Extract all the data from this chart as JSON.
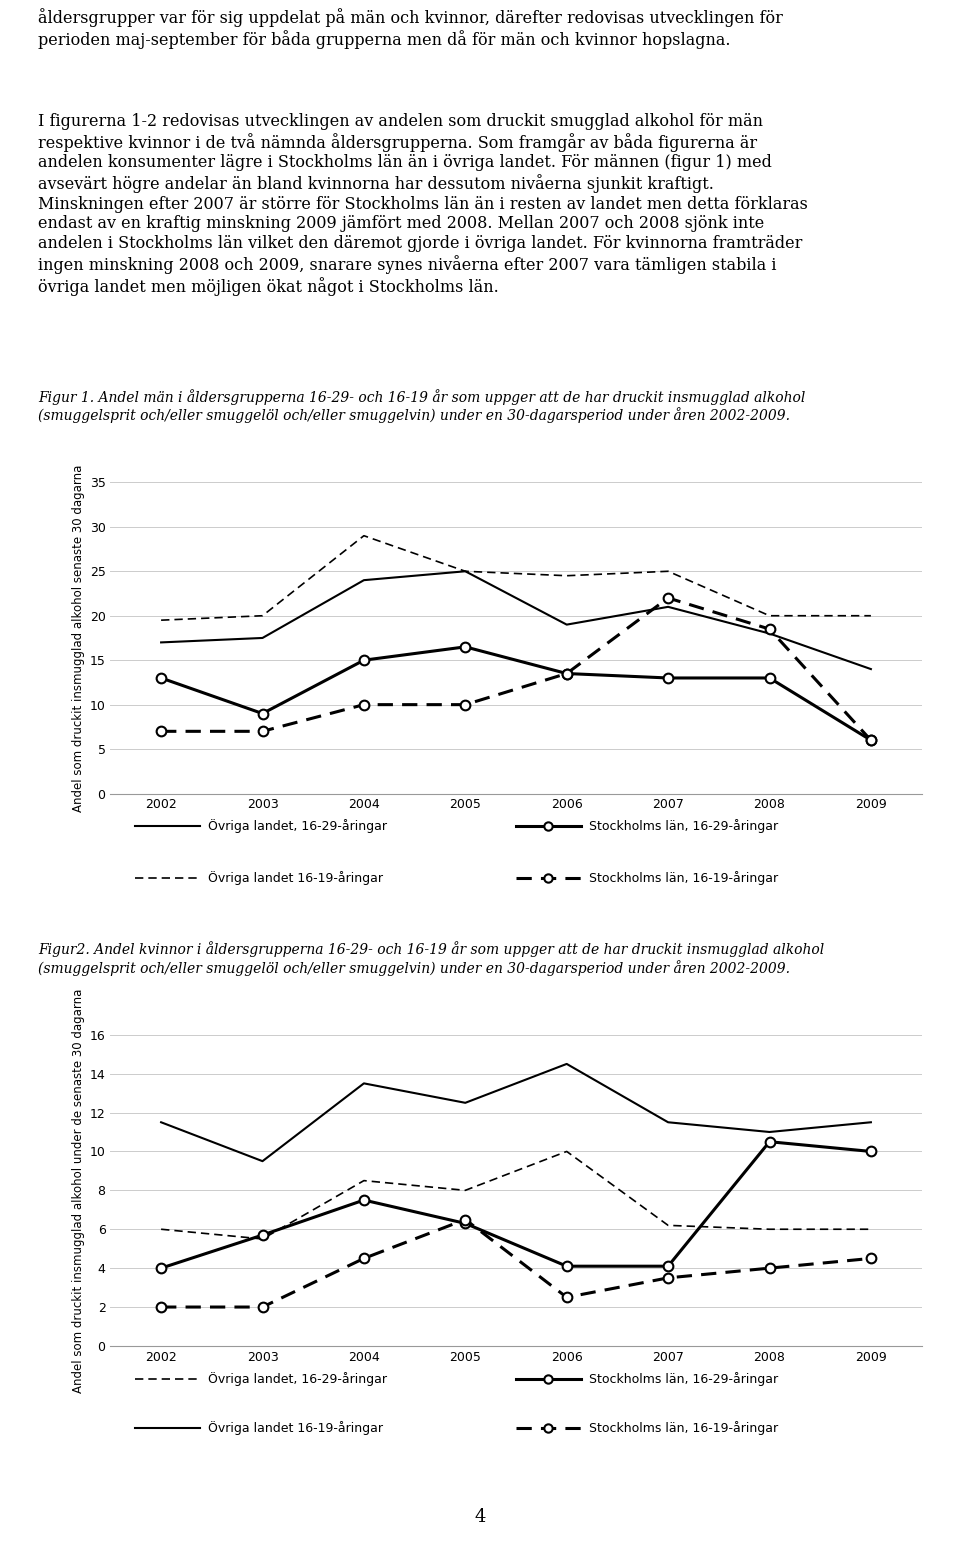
{
  "years": [
    2002,
    2003,
    2004,
    2005,
    2006,
    2007,
    2008,
    2009
  ],
  "body_text_line1": "åldersgrupper var för sig uppdelat på män och kvinnor, därefter redovisas utvecklingen för",
  "body_text_line2": "perioden maj-september för båda grupperna men då för män och kvinnor hopslagna.",
  "body_text_para2": "I figurerna 1-2 redovisas utvecklingen av andelen som druckit smugglad alkohol för män\nrespektive kvinnor i de två nämnda åldersgrupperna. Som framgår av båda figurerna är\nandelen konsumenter lägre i Stockholms län än i övriga landet. För männen (figur 1) med\navsevärt högre andelar än bland kvinnorna har dessutom nivåerna sjunkit kraftigt.\nMinskningen efter 2007 är större för Stockholms län än i resten av landet men detta förklaras\nendast av en kraftig minskning 2009 jämfört med 2008. Mellan 2007 och 2008 sjönk inte\nandelen i Stockholms län vilket den däremot gjorde i övriga landet. För kvinnorna framträder\ningen minskning 2008 och 2009, snarare synes nivåerna efter 2007 vara tämligen stabila i\növriga landet men möjligen ökat något i Stockholms län.",
  "fig1_caption": "Figur 1. Andel män i åldersgrupperna 16-29- och 16-19 år som uppger att de har druckit insmugglad alkohol\n(smuggelsprit och/eller smuggelöl och/eller smuggelvin) under en 30-dagarsperiod under åren 2002-2009.",
  "fig1_ylabel": "Andel som druckit insmugglad alkohol senaste 30 dagarna",
  "fig1_ylim": [
    0,
    35
  ],
  "fig1_yticks": [
    0,
    5,
    10,
    15,
    20,
    25,
    30,
    35
  ],
  "fig1_ovriga_1629": [
    17.0,
    17.5,
    24.0,
    25.0,
    19.0,
    21.0,
    18.0,
    14.0
  ],
  "fig1_ovriga_1619": [
    19.5,
    20.0,
    29.0,
    25.0,
    24.5,
    25.0,
    20.0,
    20.0
  ],
  "fig1_sthlm_1629": [
    13.0,
    9.0,
    15.0,
    16.5,
    13.5,
    13.0,
    13.0,
    6.0
  ],
  "fig1_sthlm_1619": [
    7.0,
    7.0,
    10.0,
    10.0,
    13.5,
    22.0,
    18.5,
    6.0
  ],
  "fig2_caption": "Figur2. Andel kvinnor i åldersgrupperna 16-29- och 16-19 år som uppger att de har druckit insmugglad alkohol\n(smuggelsprit och/eller smuggelöl och/eller smuggelvin) under en 30-dagarsperiod under åren 2002-2009.",
  "fig2_ylabel": "Andel som druckit insmugglad alkohol under de senaste 30 dagarna",
  "fig2_ylim": [
    0,
    16
  ],
  "fig2_yticks": [
    0,
    2,
    4,
    6,
    8,
    10,
    12,
    14,
    16
  ],
  "fig2_ovriga_1629": [
    6.0,
    5.5,
    8.5,
    8.0,
    10.0,
    6.2,
    6.0,
    6.0
  ],
  "fig2_ovriga_1619": [
    11.5,
    9.5,
    13.5,
    12.5,
    14.5,
    11.5,
    11.0,
    11.5
  ],
  "fig2_sthlm_1629": [
    4.0,
    5.7,
    7.5,
    6.3,
    4.1,
    4.1,
    10.5,
    10.0
  ],
  "fig2_sthlm_1619": [
    2.0,
    2.0,
    4.5,
    6.5,
    2.5,
    3.5,
    4.0,
    4.5
  ],
  "page_number": "4",
  "body_fontsize": 11.5,
  "caption_fontsize": 10.0,
  "tick_fontsize": 9,
  "ylabel_fontsize": 8.5,
  "legend_fontsize": 9.0
}
